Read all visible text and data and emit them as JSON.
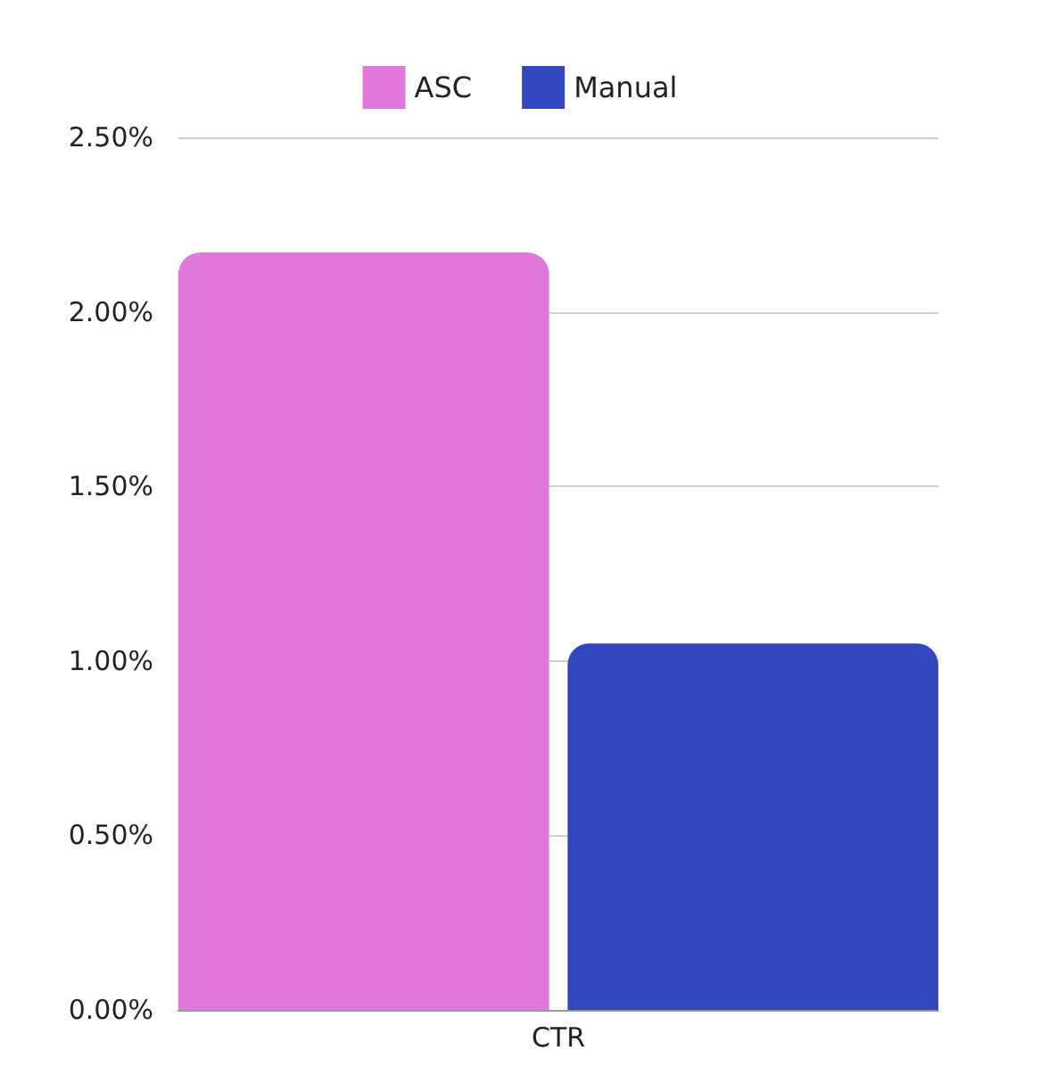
{
  "chart_data": {
    "type": "bar",
    "categories": [
      "CTR"
    ],
    "series": [
      {
        "name": "ASC",
        "color": "#e078dc",
        "values": [
          2.17
        ]
      },
      {
        "name": "Manual",
        "color": "#3348bf",
        "values": [
          1.05
        ]
      }
    ],
    "ylim": [
      0,
      2.5
    ],
    "yticks": [
      {
        "value": 0,
        "label": "0.00%"
      },
      {
        "value": 0.5,
        "label": "0.50%"
      },
      {
        "value": 1,
        "label": "1.00%"
      },
      {
        "value": 1.5,
        "label": "1.50%"
      },
      {
        "value": 2,
        "label": "2.00%"
      },
      {
        "value": 2.5,
        "label": "2.50%"
      }
    ],
    "grid": "y",
    "legend": "top"
  }
}
